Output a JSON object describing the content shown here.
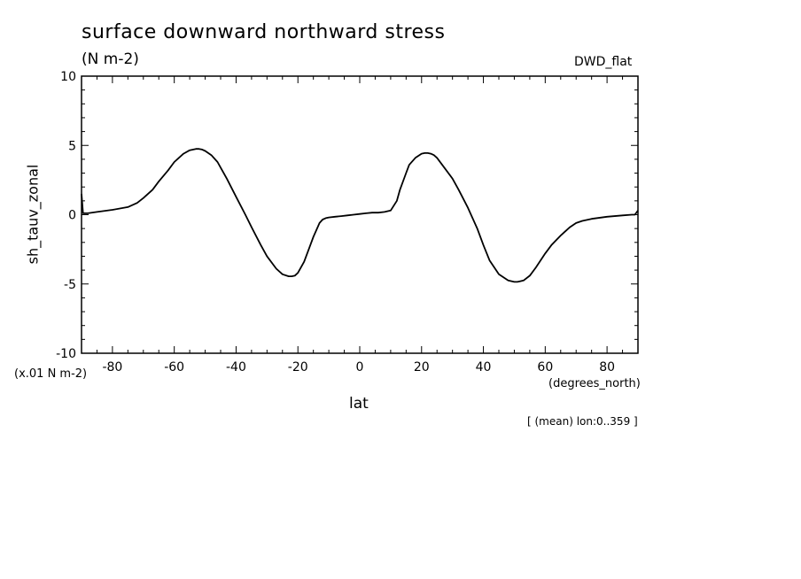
{
  "chart_data": {
    "type": "line",
    "title": "surface downward northward stress",
    "subtitle": "(N m-2)",
    "dataset": "DWD_flat",
    "xlabel": "lat",
    "x_units": "(degrees_north)",
    "ylabel": "sh_tauv_zonal",
    "y_scale_note": "(x.01 N m-2)",
    "footnote": "[ (mean) lon:0..359 ]",
    "xlim": [
      -90,
      90
    ],
    "ylim": [
      -10,
      10
    ],
    "x_ticks": [
      -80,
      -60,
      -40,
      -20,
      0,
      20,
      40,
      60,
      80
    ],
    "x_tick_labels": [
      "-80",
      "-60",
      "-40",
      "-20",
      "0",
      "20",
      "40",
      "60",
      "80"
    ],
    "y_ticks": [
      10,
      5,
      0,
      -5,
      -10
    ],
    "y_tick_labels": [
      "10",
      "5",
      "0",
      "-5",
      "-10"
    ],
    "grid": false,
    "line_color": "#000000",
    "series": [
      {
        "x": [
          -90,
          -89.5,
          -89,
          -88,
          -85,
          -80,
          -75,
          -72,
          -70,
          -67,
          -65,
          -62,
          -60,
          -57,
          -55,
          -53,
          -52,
          -51,
          -50,
          -48,
          -46,
          -45,
          -43,
          -40,
          -37,
          -35,
          -32,
          -30,
          -27,
          -25,
          -23,
          -22,
          -21,
          -20,
          -18,
          -16,
          -15,
          -13,
          -12,
          -11,
          -10,
          -8,
          -6,
          -4,
          -2,
          0,
          2,
          4,
          6,
          8,
          10,
          12,
          13,
          15,
          16,
          18,
          20,
          21,
          22,
          23,
          24,
          25,
          27,
          30,
          32,
          35,
          38,
          40,
          42,
          45,
          48,
          50,
          51,
          52,
          53,
          55,
          57,
          60,
          62,
          65,
          68,
          70,
          72,
          75,
          80,
          85,
          88,
          89,
          90
        ],
        "y": [
          1.5,
          0.1,
          0.1,
          0.1,
          0.2,
          0.35,
          0.55,
          0.85,
          1.2,
          1.8,
          2.4,
          3.2,
          3.8,
          4.4,
          4.65,
          4.75,
          4.75,
          4.7,
          4.6,
          4.3,
          3.8,
          3.4,
          2.6,
          1.3,
          0.0,
          -0.9,
          -2.2,
          -3.0,
          -3.9,
          -4.3,
          -4.45,
          -4.45,
          -4.4,
          -4.2,
          -3.4,
          -2.2,
          -1.6,
          -0.6,
          -0.35,
          -0.25,
          -0.2,
          -0.15,
          -0.1,
          -0.05,
          0.0,
          0.05,
          0.1,
          0.15,
          0.15,
          0.2,
          0.3,
          1.0,
          1.8,
          3.0,
          3.6,
          4.1,
          4.4,
          4.45,
          4.45,
          4.4,
          4.3,
          4.1,
          3.5,
          2.6,
          1.8,
          0.5,
          -1.0,
          -2.2,
          -3.3,
          -4.3,
          -4.75,
          -4.85,
          -4.85,
          -4.8,
          -4.75,
          -4.4,
          -3.8,
          -2.8,
          -2.2,
          -1.5,
          -0.9,
          -0.6,
          -0.45,
          -0.3,
          -0.15,
          -0.05,
          0.0,
          0.0,
          0.3
        ]
      }
    ]
  }
}
